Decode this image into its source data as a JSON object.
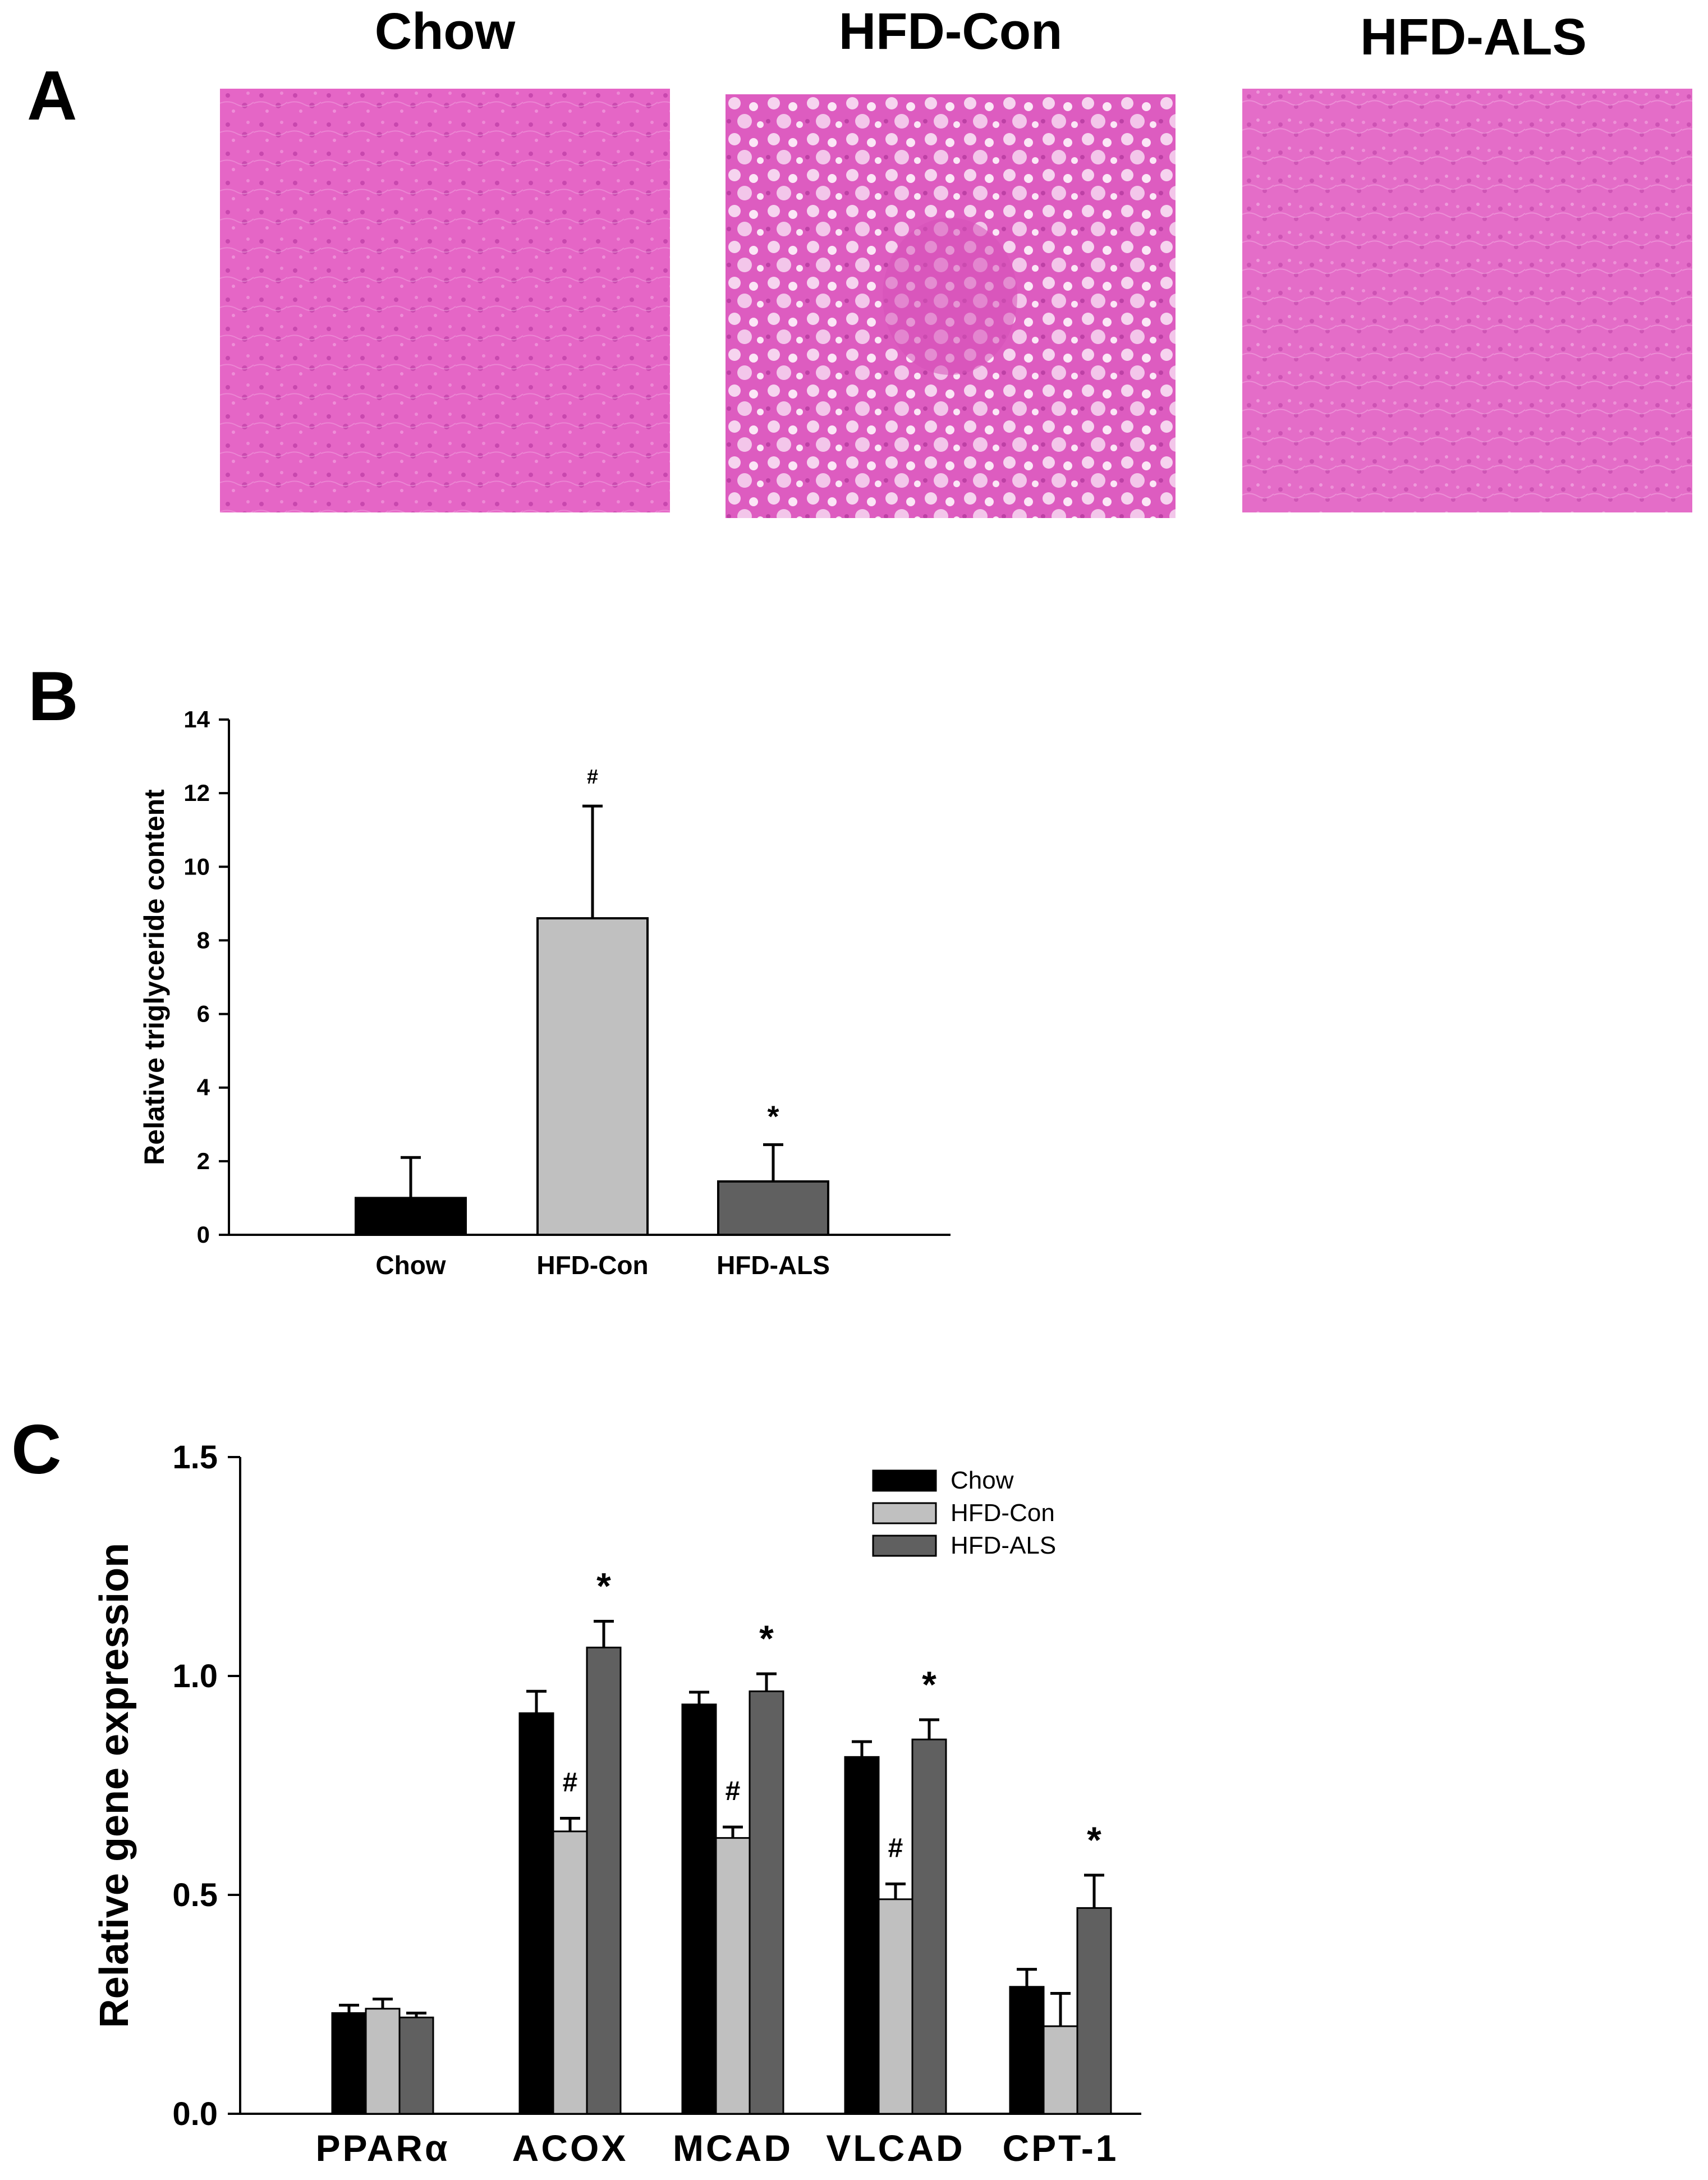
{
  "panels": {
    "a": {
      "letter": "A",
      "groups": [
        "Chow",
        "HFD-Con",
        "HFD-ALS"
      ],
      "histology_color": "#e65cc8"
    },
    "b": {
      "letter": "B"
    },
    "c": {
      "letter": "C"
    }
  },
  "chart_data": [
    {
      "type": "bar",
      "categories": [
        "Chow",
        "HFD-Con",
        "HFD-ALS"
      ],
      "values": [
        1.0,
        8.6,
        1.45
      ],
      "errors": [
        1.1,
        3.05,
        1.0
      ],
      "bar_colors": [
        "#000000",
        "#c0c0c0",
        "#606060"
      ],
      "markers": [
        "",
        "#",
        "*"
      ],
      "title": "",
      "xlabel": "",
      "ylabel": "Relative triglyceride content",
      "ylim": [
        0,
        14
      ],
      "yticks": [
        0,
        2,
        4,
        6,
        8,
        10,
        12,
        14
      ],
      "grid": false
    },
    {
      "type": "bar",
      "categories": [
        "PPARα",
        "ACOX",
        "MCAD",
        "VLCAD",
        "CPT-1"
      ],
      "series": [
        {
          "name": "Chow",
          "color": "#000000",
          "values": [
            0.23,
            0.915,
            0.935,
            0.815,
            0.29
          ],
          "errors": [
            0.018,
            0.05,
            0.028,
            0.035,
            0.04
          ],
          "markers": [
            "",
            "",
            "",
            "",
            ""
          ]
        },
        {
          "name": "HFD-Con",
          "color": "#c0c0c0",
          "values": [
            0.24,
            0.645,
            0.63,
            0.49,
            0.2
          ],
          "errors": [
            0.022,
            0.03,
            0.025,
            0.035,
            0.075
          ],
          "markers": [
            "",
            "#",
            "#",
            "#",
            ""
          ]
        },
        {
          "name": "HFD-ALS",
          "color": "#606060",
          "values": [
            0.22,
            1.065,
            0.965,
            0.855,
            0.47
          ],
          "errors": [
            0.01,
            0.06,
            0.04,
            0.045,
            0.075
          ],
          "markers": [
            "",
            "*",
            "*",
            "*",
            "*"
          ]
        }
      ],
      "title": "",
      "xlabel": "",
      "ylabel": "Relative gene expression",
      "ylim": [
        0.0,
        1.5
      ],
      "yticks": [
        "0.0",
        "0.5",
        "1.0",
        "1.5"
      ],
      "legend_position": "top-right",
      "grid": false
    }
  ]
}
